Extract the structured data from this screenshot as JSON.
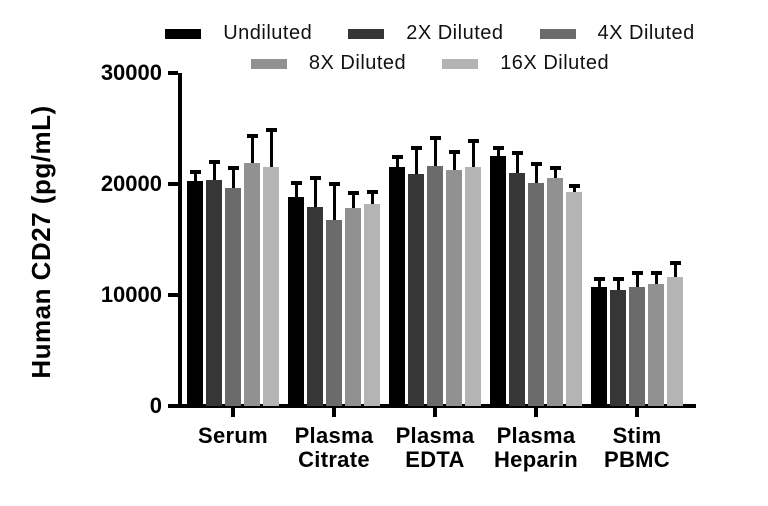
{
  "chart_data": {
    "type": "bar",
    "title": "",
    "ylabel": "Human CD27 (pg/mL)",
    "xlabel": "",
    "ylim": [
      0,
      30000
    ],
    "yticks": [
      0,
      10000,
      20000,
      30000
    ],
    "grid": false,
    "legend_position": "top",
    "legend_rows": [
      [
        "Undiluted",
        "2X Diluted",
        "4X Diluted"
      ],
      [
        "8X Diluted",
        "16X Diluted"
      ]
    ],
    "categories": [
      "Serum",
      "Plasma Citrate",
      "Plasma EDTA",
      "Plasma Heparin",
      "Stim PBMC"
    ],
    "category_label_lines": [
      [
        "Serum"
      ],
      [
        "Plasma",
        "Citrate"
      ],
      [
        "Plasma",
        "EDTA"
      ],
      [
        "Plasma",
        "Heparin"
      ],
      [
        "Stim",
        "PBMC"
      ]
    ],
    "series": [
      {
        "name": "Undiluted",
        "color": "#000000",
        "values": [
          20300,
          18800,
          21500,
          22500,
          10700
        ],
        "errors": [
          850,
          1350,
          1050,
          800,
          850
        ]
      },
      {
        "name": "2X Diluted",
        "color": "#363636",
        "values": [
          20400,
          17900,
          20900,
          21000,
          10450
        ],
        "errors": [
          1650,
          2700,
          2400,
          1900,
          1100
        ]
      },
      {
        "name": "4X Diluted",
        "color": "#6b6b6b",
        "values": [
          19600,
          16800,
          21600,
          20100,
          10700
        ],
        "errors": [
          1900,
          3300,
          2600,
          1800,
          1350
        ]
      },
      {
        "name": "8X Diluted",
        "color": "#919191",
        "values": [
          21900,
          17800,
          21300,
          20500,
          11000
        ],
        "errors": [
          2500,
          1450,
          1700,
          1050,
          1050
        ]
      },
      {
        "name": "16X Diluted",
        "color": "#b4b4b4",
        "values": [
          21500,
          18200,
          21500,
          19300,
          11600
        ],
        "errors": [
          3500,
          1200,
          2450,
          650,
          1400
        ]
      }
    ],
    "error_bar_color": "#000000"
  }
}
